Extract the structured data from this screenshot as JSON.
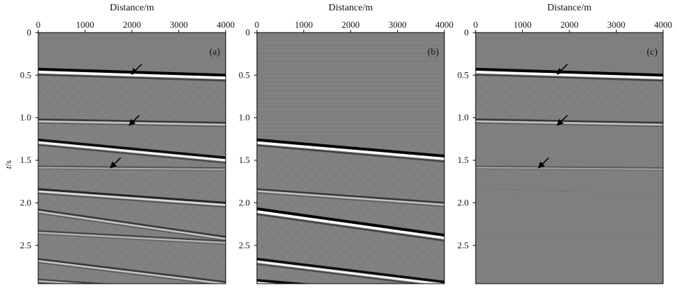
{
  "chart_data": [
    {
      "type": "heatmap",
      "panel_label": "(a)",
      "xlabel": "Distance/m",
      "ylabel": "t/s",
      "xlim": [
        0,
        4000
      ],
      "ylim": [
        0,
        2.95
      ],
      "x_ticks": [
        0,
        1000,
        2000,
        3000,
        4000
      ],
      "y_ticks": [
        0,
        0.5,
        1.0,
        1.5,
        2.0,
        2.5
      ],
      "background": "#7f7f7f",
      "events": [
        {
          "t0": 0.43,
          "t1": 0.5,
          "polarity": "black-white",
          "strength": 1.0
        },
        {
          "t0": 1.02,
          "t1": 1.06,
          "polarity": "black-white",
          "strength": 0.55
        },
        {
          "t0": 1.26,
          "t1": 1.47,
          "polarity": "black-white",
          "strength": 0.9
        },
        {
          "t0": 1.57,
          "t1": 1.59,
          "polarity": "black-white",
          "strength": 0.35
        },
        {
          "t0": 1.84,
          "t1": 2.0,
          "polarity": "black-white",
          "strength": 0.7
        },
        {
          "t0": 2.08,
          "t1": 2.4,
          "polarity": "black-white",
          "strength": 0.55
        },
        {
          "t0": 2.33,
          "t1": 2.45,
          "polarity": "black-white",
          "strength": 0.45
        },
        {
          "t0": 2.66,
          "t1": 2.93,
          "polarity": "black-white",
          "strength": 0.55
        },
        {
          "t0": 2.9,
          "t1": 3.05,
          "polarity": "black-white",
          "strength": 0.45
        }
      ],
      "arrows": [
        {
          "distance": 2000,
          "t": 0.42
        },
        {
          "distance": 1950,
          "t": 1.02
        },
        {
          "distance": 1550,
          "t": 1.52
        }
      ]
    },
    {
      "type": "heatmap",
      "panel_label": "(b)",
      "xlabel": "Distance/m",
      "ylabel": "",
      "xlim": [
        0,
        4000
      ],
      "ylim": [
        0,
        2.95
      ],
      "x_ticks": [
        0,
        1000,
        2000,
        3000,
        4000
      ],
      "y_ticks": [
        0,
        0.5,
        1.0,
        1.5,
        2.0,
        2.5
      ],
      "background": "#7f7f7f",
      "events": [
        {
          "t0": 1.26,
          "t1": 1.45,
          "polarity": "black-white",
          "strength": 1.0
        },
        {
          "t0": 1.84,
          "t1": 2.0,
          "polarity": "black-white",
          "strength": 0.55
        },
        {
          "t0": 2.07,
          "t1": 2.38,
          "polarity": "black-white",
          "strength": 1.0
        },
        {
          "t0": 2.66,
          "t1": 2.93,
          "polarity": "black-white",
          "strength": 0.9
        },
        {
          "t0": 2.91,
          "t1": 3.1,
          "polarity": "black-white",
          "strength": 0.9
        }
      ],
      "arrows": []
    },
    {
      "type": "heatmap",
      "panel_label": "(c)",
      "xlabel": "Distance/m",
      "ylabel": "",
      "xlim": [
        0,
        4000
      ],
      "ylim": [
        0,
        2.95
      ],
      "x_ticks": [
        0,
        1000,
        2000,
        3000,
        4000
      ],
      "y_ticks": [
        0,
        0.5,
        1.0,
        1.5,
        2.0,
        2.5
      ],
      "background": "#7f7f7f",
      "events": [
        {
          "t0": 0.43,
          "t1": 0.5,
          "polarity": "black-white",
          "strength": 1.0
        },
        {
          "t0": 1.02,
          "t1": 1.06,
          "polarity": "black-white",
          "strength": 0.55
        },
        {
          "t0": 1.57,
          "t1": 1.59,
          "polarity": "black-white",
          "strength": 0.3
        },
        {
          "t0": 1.84,
          "t1": 1.9,
          "polarity": "black-white",
          "strength": 0.08
        },
        {
          "t0": 2.38,
          "t1": 2.4,
          "polarity": "black-white",
          "strength": 0.08
        }
      ],
      "arrows": [
        {
          "distance": 1750,
          "t": 0.42
        },
        {
          "distance": 1750,
          "t": 1.02
        },
        {
          "distance": 1350,
          "t": 1.52
        }
      ]
    }
  ]
}
